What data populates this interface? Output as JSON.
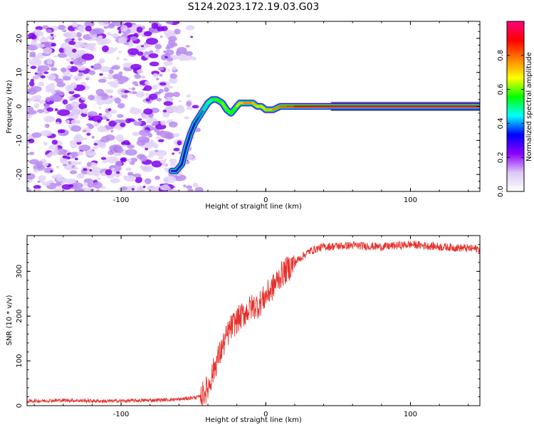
{
  "title": "S124.2023.172.19.03.G03",
  "chart_data": [
    {
      "type": "heatmap",
      "xlabel": "Height of straight line (km)",
      "ylabel": "Frequency (Hz)",
      "xlim": [
        -165,
        148
      ],
      "ylim": [
        -25,
        25
      ],
      "xticks": [
        -100,
        0,
        100
      ],
      "xtick_labels": [
        "-100",
        "0",
        "100"
      ],
      "yticks": [
        -20,
        -10,
        0,
        10,
        20
      ],
      "ytick_labels": [
        "-20",
        "-10",
        "0",
        "10",
        "20"
      ],
      "colorbar": {
        "label": "Normalized spectral amplitude",
        "range": [
          0,
          1
        ],
        "ticks": [
          0.0,
          0.2,
          0.4,
          0.6,
          0.8
        ],
        "tick_labels": [
          "0.0",
          "0.2",
          "0.4",
          "0.6",
          "0.8"
        ],
        "colormap": [
          "#ffffff",
          "#dcc8f5",
          "#8c00ff",
          "#0000ff",
          "#00ffff",
          "#00ff00",
          "#ffff00",
          "#ff8000",
          "#ff0000",
          "#ff0080"
        ]
      },
      "noise_region_x": [
        -165,
        -50
      ],
      "ridge": {
        "x": [
          -65,
          -62,
          -58,
          -55,
          -52,
          -49,
          -46,
          -43,
          -40,
          -37,
          -34,
          -30,
          -27,
          -24,
          -22,
          -20,
          -18,
          -15,
          -12,
          -9,
          -6,
          -3,
          0,
          5,
          10,
          15,
          20,
          30,
          45,
          148
        ],
        "y": [
          -19,
          -19,
          -17,
          -12,
          -8,
          -5,
          -3,
          -1,
          1,
          2,
          2,
          1,
          -1,
          -2,
          -1,
          0,
          1,
          1,
          1,
          1,
          0,
          0,
          -1,
          -1,
          0,
          0,
          0,
          0,
          0,
          0
        ],
        "amplitude": [
          0.25,
          0.3,
          0.3,
          0.3,
          0.3,
          0.35,
          0.35,
          0.4,
          0.45,
          0.5,
          0.55,
          0.6,
          0.6,
          0.55,
          0.55,
          0.6,
          0.7,
          0.75,
          0.8,
          0.75,
          0.7,
          0.7,
          0.7,
          0.75,
          0.8,
          0.8,
          0.85,
          0.9,
          0.95,
          0.95
        ]
      }
    },
    {
      "type": "line",
      "xlabel": "Height of straight line (km)",
      "ylabel": "SNR (10 * v/v)",
      "xlim": [
        -165,
        148
      ],
      "ylim": [
        0,
        380
      ],
      "xticks": [
        -100,
        0,
        100
      ],
      "xtick_labels": [
        "-100",
        "0",
        "100"
      ],
      "yticks": [
        0,
        100,
        200,
        300
      ],
      "ytick_labels": [
        "0",
        "100",
        "200",
        "300"
      ],
      "color": "#e8302a",
      "x": [
        -165,
        -140,
        -110,
        -80,
        -60,
        -45,
        -40,
        -35,
        -30,
        -25,
        -20,
        -15,
        -10,
        -5,
        0,
        5,
        10,
        20,
        30,
        40,
        60,
        80,
        100,
        120,
        148
      ],
      "y": [
        10,
        12,
        10,
        12,
        14,
        20,
        40,
        90,
        130,
        170,
        190,
        205,
        220,
        225,
        245,
        265,
        290,
        320,
        345,
        355,
        358,
        355,
        360,
        355,
        350
      ]
    }
  ]
}
